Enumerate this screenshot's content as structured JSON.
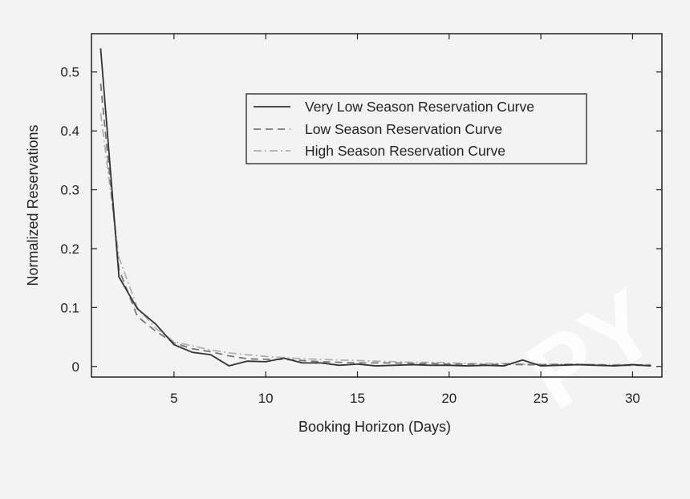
{
  "chart_data": {
    "type": "line",
    "xlabel": "Booking Horizon (Days)",
    "ylabel": "Normalized Reservations",
    "xlim": [
      0.5,
      31.6
    ],
    "ylim": [
      -0.018,
      0.565
    ],
    "xticks": [
      5,
      10,
      15,
      20,
      25,
      30
    ],
    "yticks": [
      0,
      0.1,
      0.2,
      0.3,
      0.4,
      0.5
    ],
    "ytick_labels": [
      "0",
      "0.1",
      "0.2",
      "0.3",
      "0.4",
      "0.5"
    ],
    "grid": false,
    "legend_position": "upper-right",
    "x": [
      1,
      2,
      3,
      4,
      5,
      6,
      7,
      8,
      9,
      10,
      11,
      12,
      13,
      14,
      15,
      16,
      17,
      18,
      19,
      20,
      21,
      22,
      23,
      24,
      25,
      26,
      27,
      28,
      29,
      30,
      31
    ],
    "series": [
      {
        "name": "Very Low Season Reservation Curve",
        "style": "solid",
        "color": "#333333",
        "values": [
          0.54,
          0.152,
          0.098,
          0.072,
          0.037,
          0.024,
          0.02,
          0.001,
          0.009,
          0.008,
          0.014,
          0.006,
          0.006,
          0.002,
          0.004,
          0.001,
          0.002,
          0.003,
          0.002,
          0.002,
          0.001,
          0.002,
          0.001,
          0.011,
          0.001,
          0.002,
          0.003,
          0.002,
          0.001,
          0.003,
          0.001
        ]
      },
      {
        "name": "Low Season Reservation Curve",
        "style": "dashed",
        "color": "#777777",
        "values": [
          0.48,
          0.165,
          0.085,
          0.06,
          0.04,
          0.03,
          0.025,
          0.018,
          0.013,
          0.012,
          0.012,
          0.01,
          0.008,
          0.007,
          0.006,
          0.006,
          0.006,
          0.005,
          0.005,
          0.004,
          0.004,
          0.003,
          0.004,
          0.003,
          0.003,
          0.003,
          0.003,
          0.003,
          0.002,
          0.002,
          0.002
        ]
      },
      {
        "name": "High Season Reservation Curve",
        "style": "dashdot",
        "color": "#b0b0b0",
        "values": [
          0.43,
          0.185,
          0.1,
          0.065,
          0.042,
          0.035,
          0.028,
          0.023,
          0.02,
          0.017,
          0.015,
          0.013,
          0.012,
          0.011,
          0.01,
          0.009,
          0.008,
          0.007,
          0.007,
          0.006,
          0.005,
          0.005,
          0.005,
          0.004,
          0.004,
          0.004,
          0.004,
          0.003,
          0.003,
          0.003,
          0.003
        ]
      }
    ]
  },
  "watermark": "PY"
}
